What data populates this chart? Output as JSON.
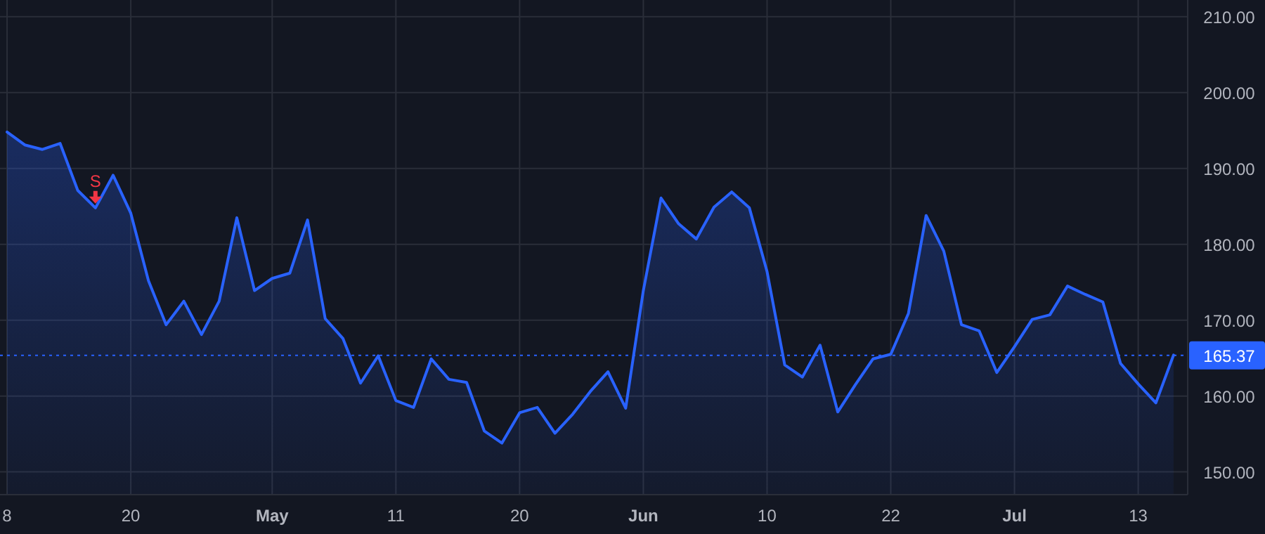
{
  "chart_data": {
    "type": "area",
    "categories": [
      "8",
      null,
      null,
      null,
      null,
      null,
      null,
      "20",
      null,
      null,
      null,
      null,
      null,
      null,
      null,
      "May",
      null,
      null,
      null,
      null,
      null,
      null,
      "11",
      null,
      null,
      null,
      null,
      null,
      null,
      "20",
      null,
      null,
      null,
      null,
      null,
      null,
      "Jun",
      null,
      null,
      null,
      null,
      null,
      null,
      "10",
      null,
      null,
      null,
      null,
      null,
      null,
      "22",
      null,
      null,
      null,
      null,
      null,
      null,
      "Jul",
      null,
      null,
      null,
      null,
      null,
      null,
      "13",
      null,
      null
    ],
    "series": [
      {
        "color": "#2962ff",
        "values": [
          194.8,
          193.1,
          192.5,
          193.3,
          187.1,
          184.8,
          189.1,
          184.1,
          175.2,
          169.4,
          172.5,
          168.1,
          172.5,
          183.5,
          173.9,
          175.5,
          176.2,
          183.2,
          170.2,
          167.6,
          161.7,
          165.3,
          159.4,
          158.5,
          164.9,
          162.2,
          161.8,
          155.4,
          153.8,
          157.8,
          158.5,
          155.1,
          157.6,
          160.6,
          163.2,
          158.4,
          173.9,
          186.1,
          182.7,
          180.7,
          184.9,
          186.9,
          184.8,
          176.4,
          164.1,
          162.5,
          166.7,
          157.9,
          161.5,
          164.9,
          165.5,
          170.9,
          183.8,
          179.1,
          169.4,
          168.6,
          163.1,
          166.5,
          170.1,
          170.7,
          174.5,
          173.4,
          172.4,
          164.3,
          161.6,
          159.1,
          165.4
        ]
      }
    ],
    "ylim": [
      147,
      212.2
    ],
    "yticks": [
      {
        "value": 150,
        "label": "150.00"
      },
      {
        "value": 160,
        "label": "160.00"
      },
      {
        "value": 170,
        "label": "170.00"
      },
      {
        "value": 180,
        "label": "180.00"
      },
      {
        "value": 190,
        "label": "190.00"
      },
      {
        "value": 200,
        "label": "200.00"
      },
      {
        "value": 210,
        "label": "210.00"
      }
    ],
    "grid": true,
    "ref_lines": [
      {
        "axis": "y",
        "value": 165.37,
        "label": "165.37",
        "color": "#2962ff",
        "line_style": "dotted"
      }
    ],
    "annotations": [
      {
        "text": "S",
        "y": 184.8
      }
    ]
  }
}
